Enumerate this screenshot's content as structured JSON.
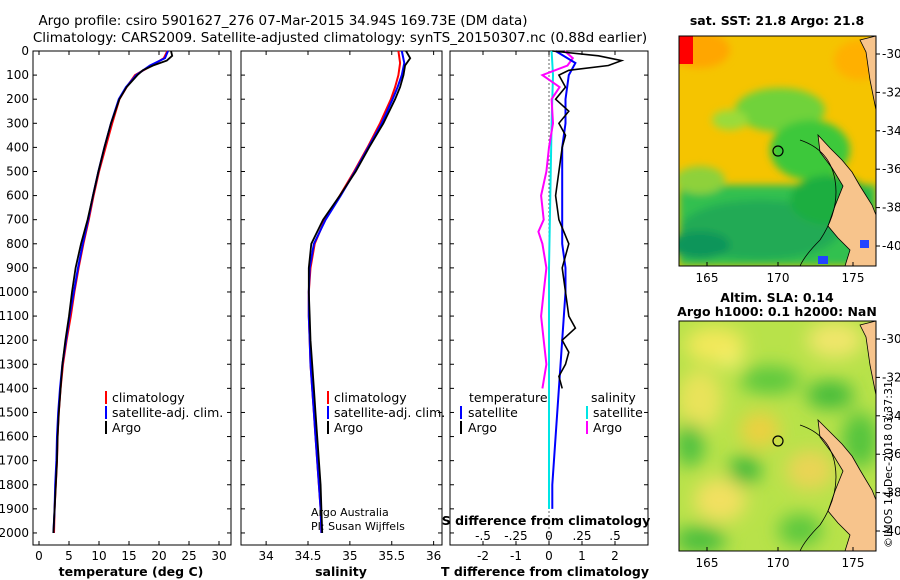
{
  "header": {
    "line1": "Argo profile: csiro 5901627_276 07-Mar-2015 34.94S 169.73E (DM data)",
    "line2": "Climatology: CARS2009. Satellite-adjusted climatology: synTS_20150307.nc (0.88d earlier)"
  },
  "depth_ticks": [
    0,
    100,
    200,
    300,
    400,
    500,
    600,
    700,
    800,
    900,
    1000,
    1100,
    1200,
    1300,
    1400,
    1500,
    1600,
    1700,
    1800,
    1900,
    2000
  ],
  "colors": {
    "clim": "#ff0000",
    "sat": "#0000ff",
    "argo": "#000000",
    "sat_s": "#00e5e5",
    "argo_s": "#ff00ff"
  },
  "chart_data": [
    {
      "type": "line",
      "id": "temperature",
      "xlabel": "temperature (deg C)",
      "xlim": [
        -1,
        32
      ],
      "xticks": [
        0,
        5,
        10,
        15,
        20,
        25,
        30
      ],
      "ylim": [
        2050,
        0
      ],
      "legend": [
        "climatology",
        "satellite-adj. clim.",
        "Argo"
      ],
      "series": [
        {
          "name": "climatology",
          "color": "#ff0000",
          "depth": [
            0,
            30,
            60,
            100,
            150,
            200,
            300,
            400,
            500,
            600,
            700,
            800,
            900,
            1000,
            1100,
            1200,
            1300,
            1400,
            1500,
            1600,
            1700,
            1800,
            1900,
            2000
          ],
          "values": [
            21.4,
            20.8,
            18.8,
            16.0,
            14.6,
            13.4,
            12.2,
            11.1,
            10.0,
            9.1,
            8.3,
            7.4,
            6.6,
            5.9,
            5.3,
            4.6,
            4.0,
            3.6,
            3.3,
            3.1,
            3.0,
            2.8,
            2.6,
            2.5
          ]
        },
        {
          "name": "satellite-adj. clim.",
          "color": "#0000ff",
          "depth": [
            0,
            30,
            60,
            100,
            150,
            200,
            300,
            400,
            500,
            600,
            700,
            800,
            900,
            1000,
            1100,
            1200,
            1300,
            1400,
            1500,
            1600,
            1700,
            1800,
            1900,
            2000
          ],
          "values": [
            21.5,
            21.0,
            18.5,
            16.2,
            14.5,
            13.3,
            12.0,
            10.9,
            9.9,
            9.0,
            8.2,
            7.3,
            6.5,
            5.8,
            5.1,
            4.5,
            3.9,
            3.5,
            3.2,
            3.0,
            2.9,
            2.7,
            2.6,
            2.4
          ]
        },
        {
          "name": "Argo",
          "color": "#000000",
          "depth": [
            0,
            20,
            40,
            60,
            80,
            100,
            150,
            200,
            300,
            400,
            500,
            600,
            700,
            800,
            900,
            1000,
            1100,
            1200,
            1300,
            1400,
            1500,
            1600,
            1700,
            1800,
            1900,
            2000
          ],
          "values": [
            22.0,
            22.2,
            21.3,
            19.0,
            17.3,
            16.4,
            14.6,
            13.4,
            12.0,
            10.9,
            9.9,
            9.0,
            8.1,
            7.0,
            6.1,
            5.5,
            5.0,
            4.4,
            3.9,
            3.6,
            3.3,
            3.1,
            3.0,
            2.8,
            2.6,
            2.4
          ]
        }
      ]
    },
    {
      "type": "line",
      "id": "salinity",
      "xlabel": "salinity",
      "xlim": [
        33.7,
        36.1
      ],
      "xticks": [
        34,
        34.5,
        35,
        35.5,
        36
      ],
      "ylim": [
        2050,
        0
      ],
      "legend": [
        "climatology",
        "satellite-adj. clim.",
        "Argo"
      ],
      "credits": [
        "Argo Australia",
        "PI: Susan Wijffels"
      ],
      "series": [
        {
          "name": "climatology",
          "color": "#ff0000",
          "depth": [
            0,
            50,
            100,
            150,
            200,
            300,
            400,
            500,
            600,
            700,
            800,
            900,
            1000,
            1100,
            1200,
            1300,
            1400,
            1500,
            1600,
            1700,
            1800,
            1900,
            2000
          ],
          "values": [
            35.58,
            35.6,
            35.58,
            35.54,
            35.49,
            35.36,
            35.21,
            35.05,
            34.88,
            34.7,
            34.58,
            34.53,
            34.51,
            34.51,
            34.52,
            34.53,
            34.55,
            34.57,
            34.59,
            34.61,
            34.63,
            34.65,
            34.66
          ]
        },
        {
          "name": "satellite-adj. clim.",
          "color": "#0000ff",
          "depth": [
            0,
            50,
            100,
            150,
            200,
            300,
            400,
            500,
            600,
            700,
            800,
            900,
            1000,
            1100,
            1200,
            1300,
            1400,
            1500,
            1600,
            1700,
            1800,
            1900,
            2000
          ],
          "values": [
            35.62,
            35.65,
            35.62,
            35.57,
            35.51,
            35.38,
            35.22,
            35.06,
            34.89,
            34.71,
            34.57,
            34.52,
            34.51,
            34.51,
            34.52,
            34.53,
            34.55,
            34.57,
            34.59,
            34.61,
            34.63,
            34.65,
            34.66
          ]
        },
        {
          "name": "Argo",
          "color": "#000000",
          "depth": [
            0,
            30,
            60,
            100,
            150,
            200,
            300,
            400,
            500,
            600,
            700,
            800,
            900,
            1000,
            1100,
            1200,
            1300,
            1400,
            1500,
            1600,
            1700,
            1800,
            1900,
            2000
          ],
          "values": [
            35.67,
            35.72,
            35.66,
            35.64,
            35.6,
            35.54,
            35.4,
            35.23,
            35.07,
            34.88,
            34.68,
            34.54,
            34.51,
            34.51,
            34.52,
            34.53,
            34.55,
            34.57,
            34.59,
            34.61,
            34.63,
            34.65,
            34.66,
            34.67
          ]
        }
      ]
    },
    {
      "type": "line",
      "id": "differences",
      "xlabel": "T difference from climatology",
      "xlabel2": "S difference from climatology",
      "xlim": [
        -3,
        3
      ],
      "xticks": [
        -2,
        -1,
        0,
        1,
        2
      ],
      "xticks2": [
        -0.5,
        -0.25,
        0,
        0.25,
        0.5
      ],
      "ylim": [
        2050,
        0
      ],
      "legend_temperature": {
        "title": "temperature",
        "items": [
          "satellite",
          "Argo"
        ]
      },
      "legend_salinity": {
        "title": "salinity",
        "items": [
          "satellite",
          "Argo"
        ]
      },
      "series": [
        {
          "name": "T satellite",
          "color": "#0000ff",
          "depth": [
            0,
            50,
            100,
            200,
            300,
            400,
            500,
            600,
            700,
            800,
            900,
            1000,
            1200,
            1400,
            1600,
            1800,
            1900
          ],
          "values": [
            0.2,
            0.8,
            0.6,
            0.5,
            0.5,
            0.4,
            0.4,
            0.4,
            0.4,
            0.4,
            0.5,
            0.5,
            0.4,
            0.3,
            0.2,
            0.1,
            0.1
          ]
        },
        {
          "name": "T Argo",
          "color": "#000000",
          "depth": [
            0,
            20,
            40,
            60,
            80,
            100,
            150,
            200,
            250,
            300,
            350,
            400,
            500,
            600,
            700,
            800,
            900,
            1000,
            1100,
            1150,
            1200,
            1250,
            1300,
            1350,
            1400
          ],
          "values": [
            0.1,
            1.5,
            2.2,
            1.8,
            0.6,
            0.3,
            0.5,
            0.2,
            0.6,
            0.3,
            0.5,
            0.4,
            0.3,
            0.2,
            0.3,
            0.6,
            0.4,
            0.5,
            0.6,
            0.8,
            0.4,
            0.6,
            0.5,
            0.3,
            0.4
          ]
        },
        {
          "name": "S satellite",
          "color": "#00e5e5",
          "depth": [
            0,
            100,
            300,
            600,
            900,
            1200,
            1500,
            1900
          ],
          "values": [
            0.02,
            0.03,
            0.02,
            0.01,
            0.0,
            0.0,
            0.0,
            0.0
          ]
        },
        {
          "name": "S Argo",
          "color": "#ff00ff",
          "depth": [
            0,
            30,
            60,
            100,
            150,
            200,
            300,
            400,
            500,
            600,
            700,
            750,
            800,
            900,
            1000,
            1100,
            1200,
            1300,
            1400
          ],
          "values": [
            0.12,
            0.18,
            0.14,
            -0.05,
            0.08,
            0.02,
            0.03,
            0.0,
            -0.02,
            -0.06,
            -0.04,
            -0.08,
            -0.05,
            -0.02,
            -0.04,
            -0.06,
            -0.04,
            -0.02,
            -0.05
          ]
        }
      ]
    }
  ],
  "maps": {
    "sst": {
      "title": "sat. SST: 21.8 Argo: 21.8",
      "lon_ticks": [
        "165",
        "170",
        "175"
      ],
      "lat_ticks": [
        "-30",
        "-32",
        "-34",
        "-36",
        "-38",
        "-40"
      ]
    },
    "sla": {
      "title1": "Altim. SLA: 0.14",
      "title2": "Argo h1000: 0.1 h2000: NaN",
      "lon_ticks": [
        "165",
        "170",
        "175"
      ],
      "lat_ticks": [
        "-30",
        "-32",
        "-34",
        "-36",
        "-38",
        "-40"
      ]
    }
  },
  "watermark": "©IMOS 14-Dec-2018 03:37:31"
}
